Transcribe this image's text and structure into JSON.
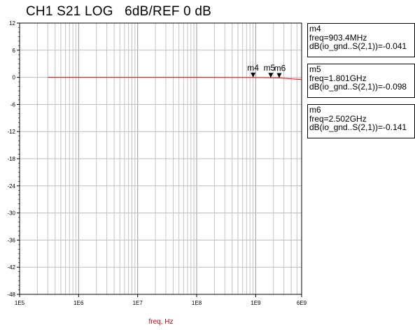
{
  "title": "CH1 S21 LOG   6dB/REF 0 dB",
  "chart_data": {
    "type": "line",
    "xscale": "log",
    "xlim": [
      100000,
      6000000000
    ],
    "ylim": [
      -48,
      12
    ],
    "xticks": [
      100000,
      1000000,
      10000000,
      100000000,
      1000000000,
      6000000000
    ],
    "xtick_labels": [
      "1E5",
      "1E6",
      "1E7",
      "1E8",
      "1E9",
      "6E9"
    ],
    "yticks": [
      12,
      6,
      0,
      -6,
      -12,
      -18,
      -24,
      -30,
      -36,
      -42,
      -48
    ],
    "xlabel": "freq, Hz",
    "ylabel": "",
    "grid": true,
    "series": [
      {
        "color": "#ff0000",
        "x": [
          300000,
          100000000,
          903400000,
          1801000000,
          2502000000,
          6000000000
        ],
        "y": [
          0.0,
          0.0,
          -0.041,
          -0.098,
          -0.141,
          -0.5
        ]
      }
    ],
    "markers": [
      {
        "name": "m4",
        "freq_text": "freq=903.4MHz",
        "value_text": "dB(io_gnd..S(2,1))=-0.041",
        "x": 903400000,
        "y": -0.041
      },
      {
        "name": "m5",
        "freq_text": "freq=1.801GHz",
        "value_text": "dB(io_gnd..S(2,1))=-0.098",
        "x": 1801000000,
        "y": -0.098
      },
      {
        "name": "m6",
        "freq_text": "freq=2.502GHz",
        "value_text": "dB(io_gnd..S(2,1))=-0.141",
        "x": 2502000000,
        "y": -0.141
      }
    ]
  }
}
